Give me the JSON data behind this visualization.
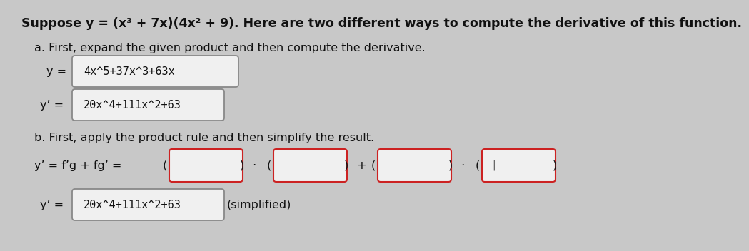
{
  "background_color": "#c8c8c8",
  "title_text": "Suppose y = (x³ + 7x)(4x² + 9). Here are two different ways to compute the derivative of this function.",
  "part_a_label": "a. First, expand the given product and then compute the derivative.",
  "y_eq_label": "y = ",
  "y_box_text": "4x^5+37x^3+63x",
  "yprime_eq_label": "y’ = ",
  "yprime_box_text": "20x^4+111x^2+63",
  "part_b_label": "b. First, apply the product rule and then simplify the result.",
  "product_rule_prefix": "y’ = f’g + fg’ = ",
  "part_b_simplified_label": "y’ = ",
  "part_b_simplified_box": "20x^4+111x^2+63",
  "simplified_text": "(simplified)",
  "box_fill_color": "#f0f0f0",
  "box_border_color_gray": "#888888",
  "box_border_color_red": "#cc2222",
  "text_color": "#111111",
  "font_size_title": 12.5,
  "font_size_body": 11.5,
  "font_size_box": 11
}
